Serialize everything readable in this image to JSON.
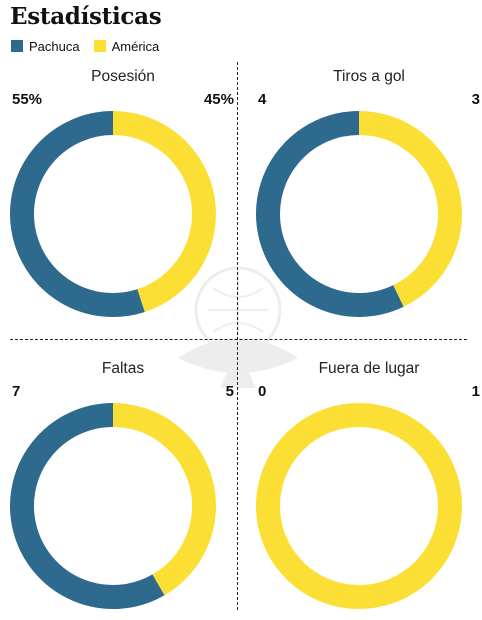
{
  "title": "Estadísticas",
  "legend": [
    {
      "label": "Pachuca",
      "color": "#2e6a8e"
    },
    {
      "label": "América",
      "color": "#fbdf35"
    }
  ],
  "chart_data": [
    {
      "type": "pie",
      "title": "Posesión",
      "categories": [
        "Pachuca",
        "América"
      ],
      "values": [
        55,
        45
      ],
      "labels": [
        "55%",
        "45%"
      ]
    },
    {
      "type": "pie",
      "title": "Tiros a gol",
      "categories": [
        "Pachuca",
        "América"
      ],
      "values": [
        4,
        3
      ],
      "labels": [
        "4",
        "3"
      ]
    },
    {
      "type": "pie",
      "title": "Faltas",
      "categories": [
        "Pachuca",
        "América"
      ],
      "values": [
        7,
        5
      ],
      "labels": [
        "7",
        "5"
      ]
    },
    {
      "type": "pie",
      "title": "Fuera de lugar",
      "categories": [
        "Pachuca",
        "América"
      ],
      "values": [
        0,
        1
      ],
      "labels": [
        "0",
        "1"
      ]
    }
  ]
}
